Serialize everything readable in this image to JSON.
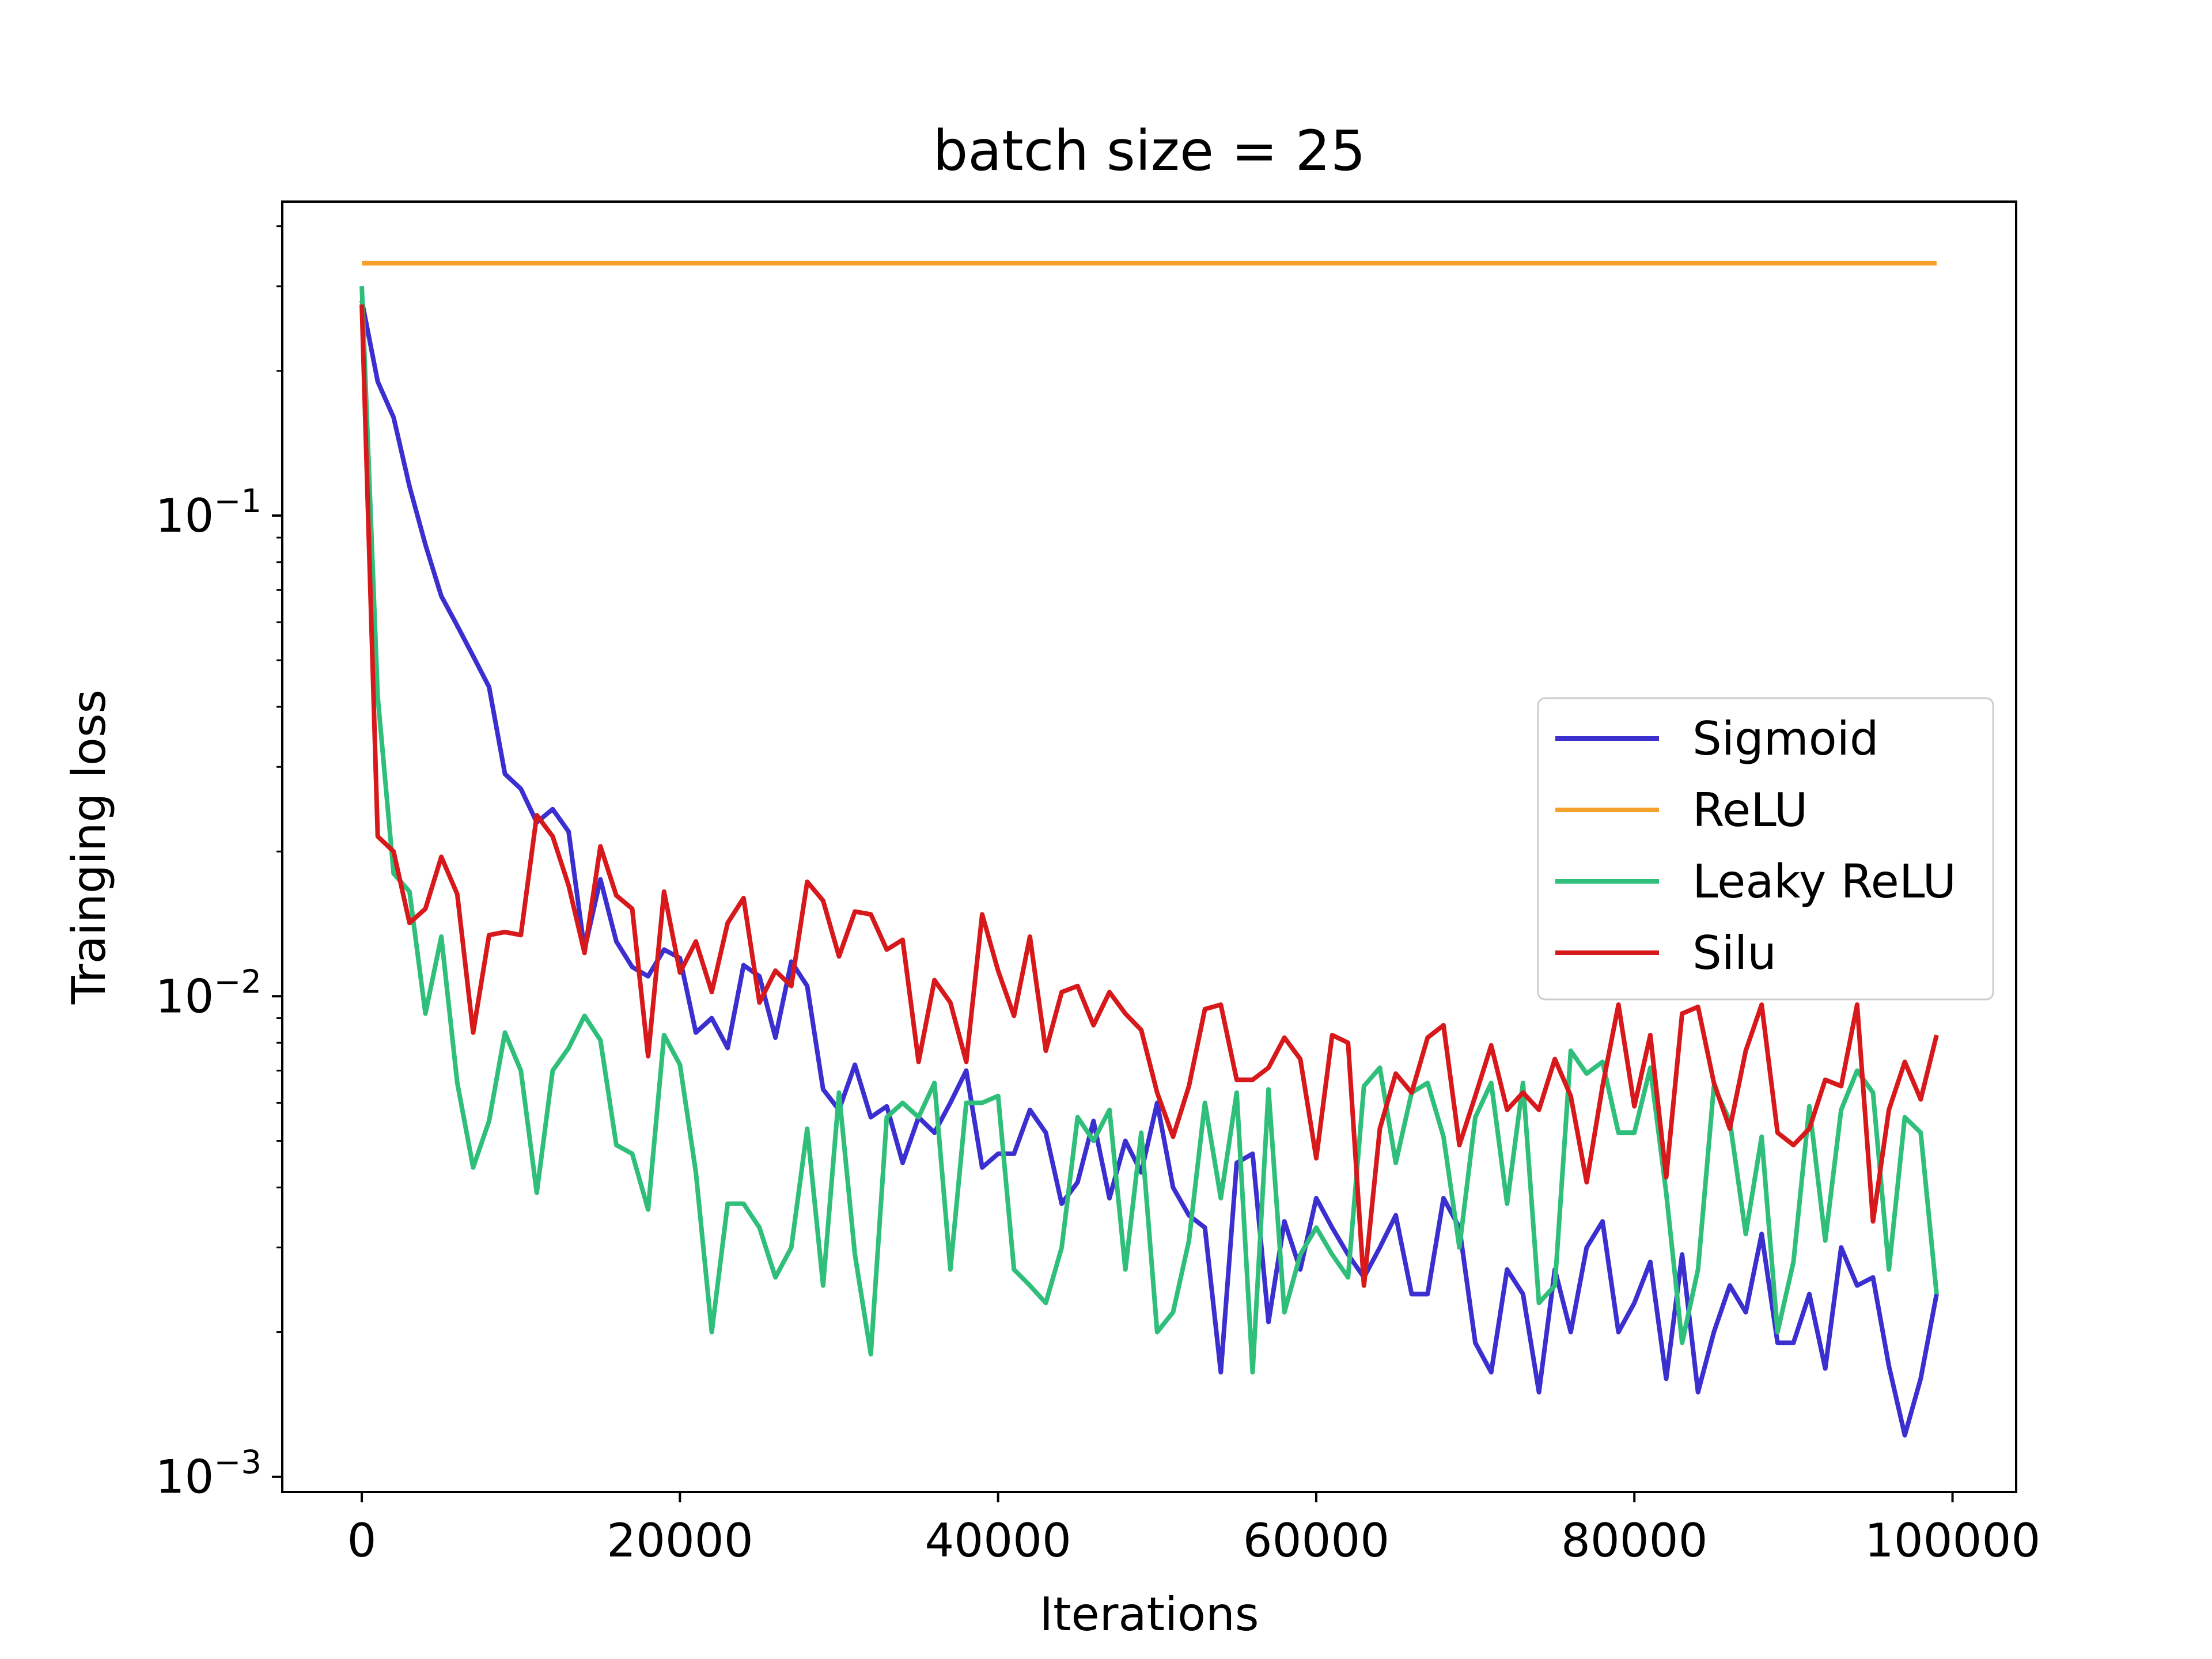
{
  "chart_data": {
    "type": "line",
    "title": "batch size = 25",
    "xlabel": "Iterations",
    "ylabel": "Trainging loss",
    "yscale": "log",
    "xlim": [
      -5000,
      104000
    ],
    "ylim": [
      0.00093,
      0.45
    ],
    "x_ticks": [
      0,
      20000,
      40000,
      60000,
      80000,
      100000
    ],
    "x_tick_labels": [
      "0",
      "20000",
      "40000",
      "60000",
      "80000",
      "100000"
    ],
    "y_ticks": [
      0.1,
      0.01,
      0.001
    ],
    "y_tick_labels": [
      {
        "base": "10",
        "exp": "−1"
      },
      {
        "base": "10",
        "exp": "−2"
      },
      {
        "base": "10",
        "exp": "−3"
      }
    ],
    "grid": false,
    "legend_position": "center-right",
    "x": [
      0,
      1000,
      2000,
      3000,
      4000,
      5000,
      6000,
      7000,
      8000,
      9000,
      10000,
      11000,
      12000,
      13000,
      14000,
      15000,
      16000,
      17000,
      18000,
      19000,
      20000,
      21000,
      22000,
      23000,
      24000,
      25000,
      26000,
      27000,
      28000,
      29000,
      30000,
      31000,
      32000,
      33000,
      34000,
      35000,
      36000,
      37000,
      38000,
      39000,
      40000,
      41000,
      42000,
      43000,
      44000,
      45000,
      46000,
      47000,
      48000,
      49000,
      50000,
      51000,
      52000,
      53000,
      54000,
      55000,
      56000,
      57000,
      58000,
      59000,
      60000,
      61000,
      62000,
      63000,
      64000,
      65000,
      66000,
      67000,
      68000,
      69000,
      70000,
      71000,
      72000,
      73000,
      74000,
      75000,
      76000,
      77000,
      78000,
      79000,
      80000,
      81000,
      82000,
      83000,
      84000,
      85000,
      86000,
      87000,
      88000,
      89000,
      90000,
      91000,
      92000,
      93000,
      94000,
      95000,
      96000,
      97000,
      98000,
      99000
    ],
    "series": [
      {
        "name": "Sigmoid",
        "color": "#3b2fd0",
        "values": [
          0.28,
          0.19,
          0.16,
          0.115,
          0.087,
          0.068,
          0.059,
          0.051,
          0.044,
          0.029,
          0.027,
          0.023,
          0.0245,
          0.022,
          0.0125,
          0.0175,
          0.013,
          0.0115,
          0.011,
          0.0125,
          0.012,
          0.0084,
          0.009,
          0.0078,
          0.0116,
          0.011,
          0.0082,
          0.0118,
          0.0105,
          0.0064,
          0.0058,
          0.0072,
          0.0056,
          0.0059,
          0.0045,
          0.0056,
          0.0052,
          0.006,
          0.007,
          0.0044,
          0.0047,
          0.0047,
          0.0058,
          0.0052,
          0.0037,
          0.0041,
          0.0055,
          0.0038,
          0.005,
          0.0043,
          0.006,
          0.004,
          0.0035,
          0.0033,
          0.00165,
          0.0045,
          0.0047,
          0.0021,
          0.0034,
          0.0027,
          0.0038,
          0.0033,
          0.0029,
          0.0026,
          0.003,
          0.0035,
          0.0024,
          0.0024,
          0.0038,
          0.0033,
          0.0019,
          0.00165,
          0.0027,
          0.0024,
          0.0015,
          0.0027,
          0.002,
          0.003,
          0.0034,
          0.002,
          0.0023,
          0.0028,
          0.0016,
          0.0029,
          0.0015,
          0.002,
          0.0025,
          0.0022,
          0.0032,
          0.0019,
          0.0019,
          0.0024,
          0.00168,
          0.003,
          0.0025,
          0.0026,
          0.0017,
          0.00122,
          0.0016,
          0.0024
        ]
      },
      {
        "name": "ReLU",
        "color": "#f5a02a",
        "values": [
          0.335,
          0.335,
          0.335,
          0.335,
          0.335,
          0.335,
          0.335,
          0.335,
          0.335,
          0.335,
          0.335,
          0.335,
          0.335,
          0.335,
          0.335,
          0.335,
          0.335,
          0.335,
          0.335,
          0.335,
          0.335,
          0.335,
          0.335,
          0.335,
          0.335,
          0.335,
          0.335,
          0.335,
          0.335,
          0.335,
          0.335,
          0.335,
          0.335,
          0.335,
          0.335,
          0.335,
          0.335,
          0.335,
          0.335,
          0.335,
          0.335,
          0.335,
          0.335,
          0.335,
          0.335,
          0.335,
          0.335,
          0.335,
          0.335,
          0.335,
          0.335,
          0.335,
          0.335,
          0.335,
          0.335,
          0.335,
          0.335,
          0.335,
          0.335,
          0.335,
          0.335,
          0.335,
          0.335,
          0.335,
          0.335,
          0.335,
          0.335,
          0.335,
          0.335,
          0.335,
          0.335,
          0.335,
          0.335,
          0.335,
          0.335,
          0.335,
          0.335,
          0.335,
          0.335,
          0.335,
          0.335,
          0.335,
          0.335,
          0.335,
          0.335,
          0.335,
          0.335,
          0.335,
          0.335,
          0.335,
          0.335,
          0.335,
          0.335,
          0.335,
          0.335,
          0.335,
          0.335,
          0.335,
          0.335,
          0.335
        ]
      },
      {
        "name": "Leaky ReLU",
        "color": "#2fbf7a",
        "values": [
          0.3,
          0.042,
          0.018,
          0.0165,
          0.0092,
          0.0133,
          0.0066,
          0.0044,
          0.0055,
          0.0084,
          0.007,
          0.0039,
          0.007,
          0.0078,
          0.0091,
          0.0081,
          0.0049,
          0.0047,
          0.0036,
          0.0083,
          0.0072,
          0.0043,
          0.002,
          0.0037,
          0.0037,
          0.0033,
          0.0026,
          0.003,
          0.0053,
          0.0025,
          0.0063,
          0.0029,
          0.0018,
          0.0056,
          0.006,
          0.0056,
          0.0066,
          0.0027,
          0.006,
          0.006,
          0.0062,
          0.0027,
          0.0025,
          0.0023,
          0.003,
          0.0056,
          0.005,
          0.0058,
          0.0027,
          0.0052,
          0.002,
          0.0022,
          0.0031,
          0.006,
          0.0038,
          0.0063,
          0.00165,
          0.0064,
          0.0022,
          0.0029,
          0.0033,
          0.0029,
          0.0026,
          0.0065,
          0.0071,
          0.0045,
          0.0063,
          0.0066,
          0.0051,
          0.003,
          0.0056,
          0.0066,
          0.0037,
          0.0066,
          0.0023,
          0.0025,
          0.0077,
          0.0069,
          0.0073,
          0.0052,
          0.0052,
          0.0071,
          0.0039,
          0.0019,
          0.0027,
          0.0065,
          0.0055,
          0.0032,
          0.0051,
          0.002,
          0.0028,
          0.0059,
          0.0031,
          0.0058,
          0.007,
          0.0063,
          0.0027,
          0.0056,
          0.0052,
          0.0024
        ]
      },
      {
        "name": "Silu",
        "color": "#d7191c",
        "values": [
          0.275,
          0.0215,
          0.02,
          0.0142,
          0.0152,
          0.0195,
          0.0163,
          0.0084,
          0.0134,
          0.0136,
          0.0134,
          0.0238,
          0.0215,
          0.017,
          0.0123,
          0.0205,
          0.0162,
          0.0152,
          0.0075,
          0.0165,
          0.0112,
          0.013,
          0.0102,
          0.0142,
          0.016,
          0.0097,
          0.0113,
          0.0105,
          0.0173,
          0.0158,
          0.0121,
          0.015,
          0.0148,
          0.0125,
          0.0131,
          0.0073,
          0.0108,
          0.0097,
          0.0073,
          0.0148,
          0.0113,
          0.0091,
          0.0133,
          0.0077,
          0.0102,
          0.0105,
          0.0087,
          0.0102,
          0.0092,
          0.0085,
          0.0063,
          0.0051,
          0.0065,
          0.0094,
          0.0096,
          0.0067,
          0.0067,
          0.0071,
          0.0082,
          0.0074,
          0.0046,
          0.0083,
          0.008,
          0.0025,
          0.0053,
          0.0069,
          0.0063,
          0.0082,
          0.0087,
          0.0049,
          0.0062,
          0.0079,
          0.0058,
          0.0063,
          0.0058,
          0.0074,
          0.0062,
          0.0041,
          0.0065,
          0.0096,
          0.0059,
          0.0083,
          0.0042,
          0.0092,
          0.0095,
          0.0066,
          0.0053,
          0.0077,
          0.0096,
          0.0052,
          0.0049,
          0.0053,
          0.0067,
          0.0065,
          0.0096,
          0.0034,
          0.0058,
          0.0073,
          0.0061,
          0.0083
        ]
      }
    ]
  }
}
